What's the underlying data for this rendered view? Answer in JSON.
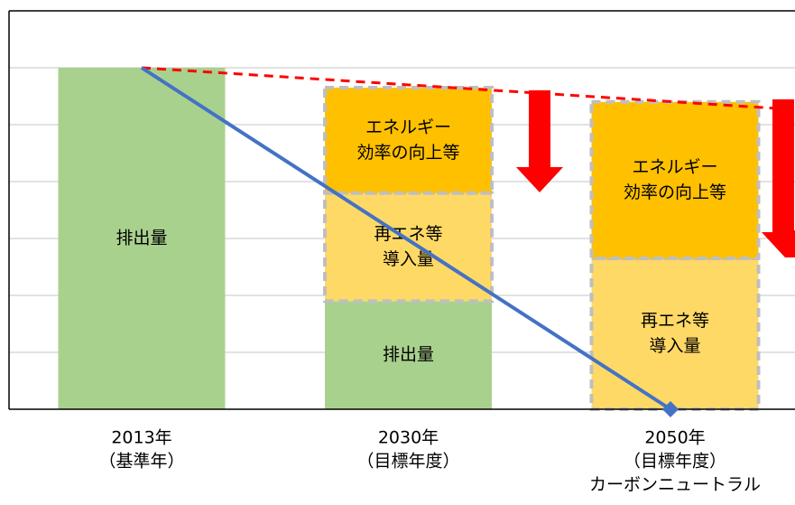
{
  "chart_data": {
    "type": "bar",
    "stacked": true,
    "categories": [
      [
        "2013年",
        "（基準年）"
      ],
      [
        "2030年",
        "（目標年度）"
      ],
      [
        "2050年",
        "（目標年度）",
        "カーボンニュートラル"
      ]
    ],
    "series": [
      {
        "name": [
          "排出量"
        ],
        "color": "#a9d18e",
        "dashed_border": false,
        "values": [
          6,
          1.9,
          0
        ]
      },
      {
        "name": [
          "再エネ等",
          "導入量"
        ],
        "color": "#ffd966",
        "dashed_border": true,
        "values": [
          0,
          1.9,
          2.65
        ]
      },
      {
        "name": [
          "エネルギー",
          "効率の向上等"
        ],
        "color": "#ffc000",
        "dashed_border": true,
        "values": [
          0,
          1.85,
          2.75
        ]
      }
    ],
    "ylim": [
      0,
      7
    ],
    "gridlines": [
      1,
      2,
      3,
      4,
      5,
      6
    ],
    "grid_color": "#d9d9d9",
    "trend_color": "#4472c4",
    "target_color": "#ff0000"
  }
}
